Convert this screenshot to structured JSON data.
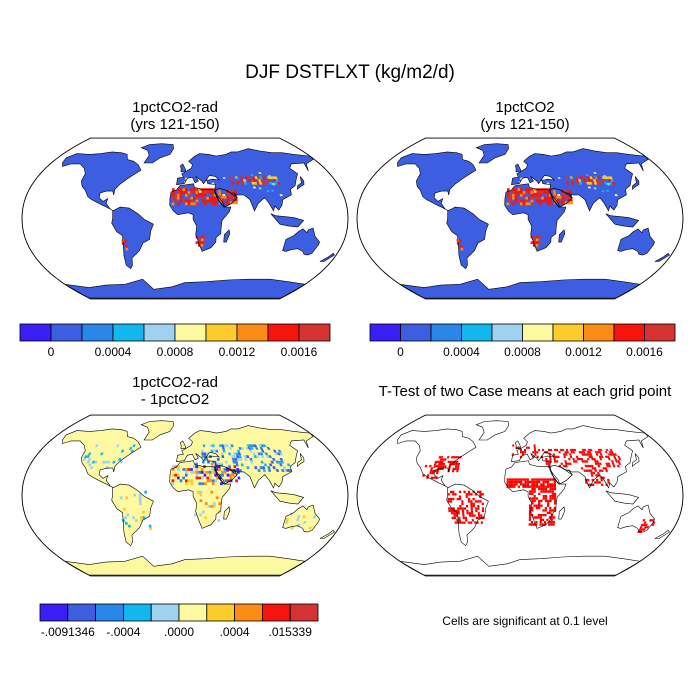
{
  "figure": {
    "title": "DJF DSTFLXT (kg/m2/d)",
    "note": "Cells are significant at 0.1 level"
  },
  "palettes": {
    "main": [
      "#3b1ef5",
      "#3d5ee0",
      "#2b86ea",
      "#12b7ee",
      "#9fd1f0",
      "#fdf9a0",
      "#fdcc2b",
      "#fb8b14",
      "#f6150d",
      "#d53232"
    ],
    "diff": [
      "#3b1ef5",
      "#3d5ee0",
      "#2b86ea",
      "#12b7ee",
      "#9fd1f0",
      "#fdf9a0",
      "#fdcc2b",
      "#fb8b14",
      "#f6150d",
      "#d53232"
    ],
    "land_main": "#3d5ee0",
    "land_diff": "#fdf9a0",
    "signif": "#ff0000",
    "ocean": "#ffffff"
  },
  "chart_data": [
    {
      "type": "heatmap",
      "title_line1": "1pctCO2-rad",
      "title_line2": "(yrs 121-150)",
      "colorbar": {
        "tick_labels": [
          "0",
          "0.0004",
          "0.0008",
          "0.0012",
          "0.0016"
        ],
        "n_colors": 10
      }
    },
    {
      "type": "heatmap",
      "title_line1": "1pctCO2",
      "title_line2": "(yrs 121-150)",
      "colorbar": {
        "tick_labels": [
          "0",
          "0.0004",
          "0.0008",
          "0.0012",
          "0.0016"
        ],
        "n_colors": 10
      }
    },
    {
      "type": "heatmap",
      "title_line1": "1pctCO2-rad",
      "title_line2": "- 1pctCO2",
      "colorbar": {
        "tick_labels": [
          "-.0091346",
          "-.0004",
          ".0000",
          ".0004",
          ".015339"
        ],
        "n_colors": 10
      }
    },
    {
      "type": "heatmap",
      "title_line1": "T-Test of two Case means at each grid point",
      "title_line2": ""
    }
  ]
}
